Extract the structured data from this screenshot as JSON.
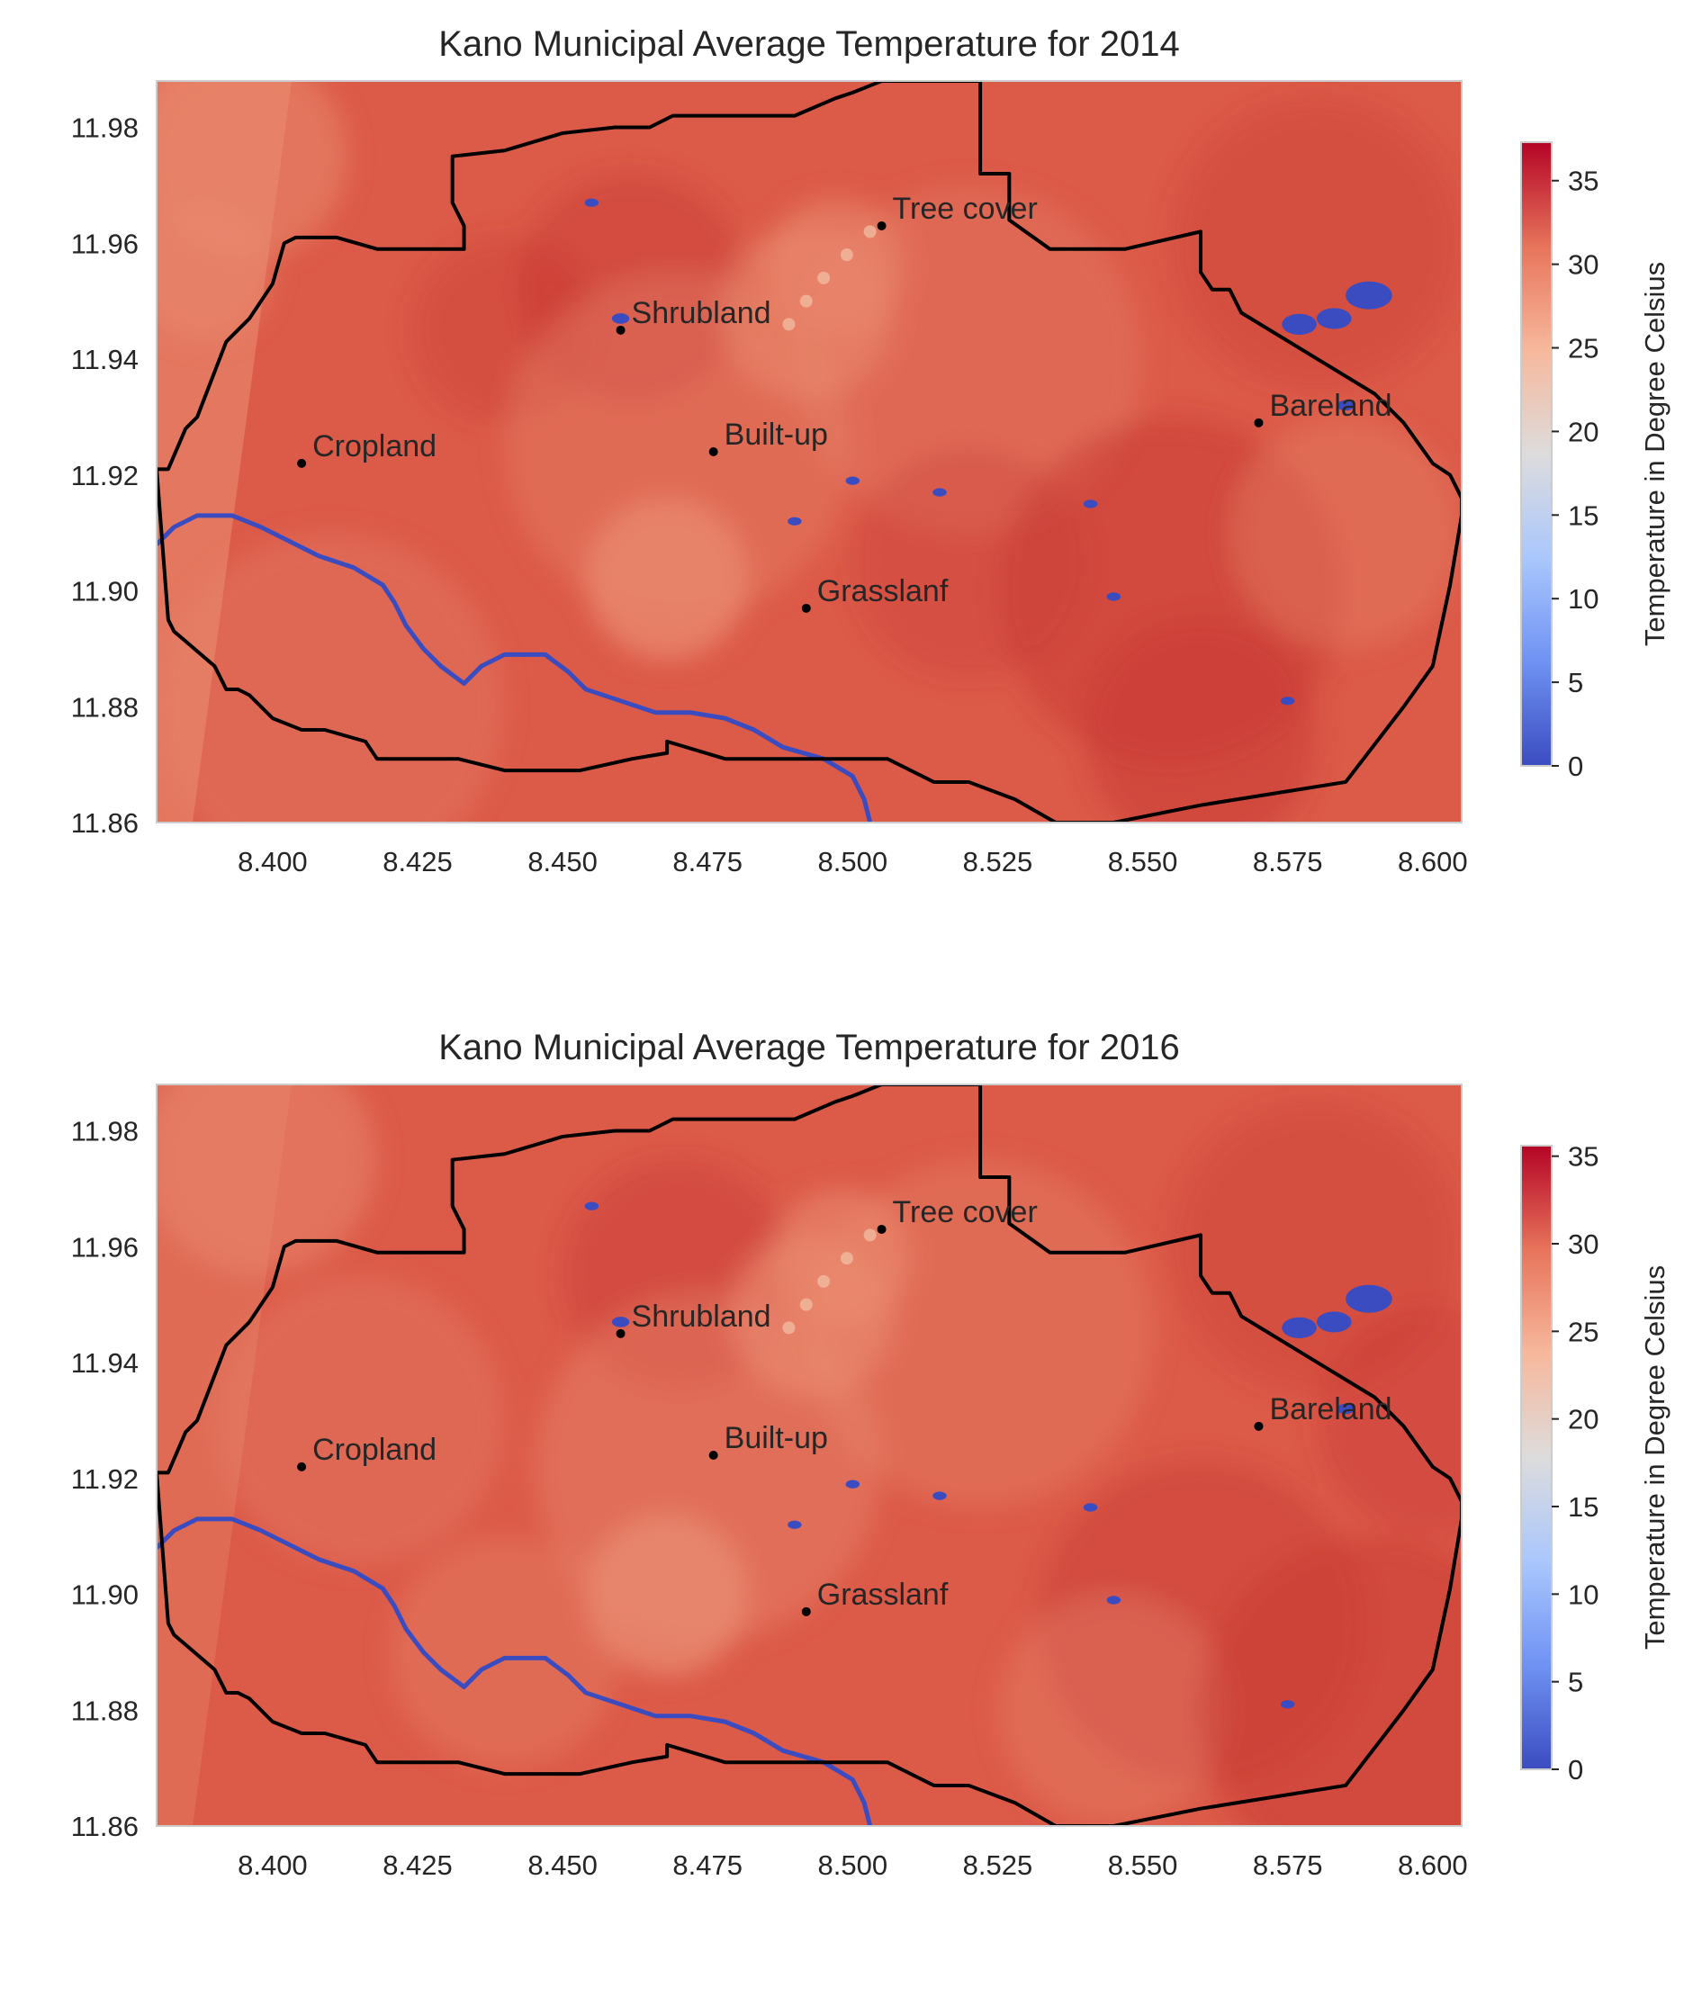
{
  "figure": {
    "colormap": [
      "#3b4cc0",
      "#6f92f3",
      "#aac7fd",
      "#dddcdc",
      "#f7b89c",
      "#e7745b",
      "#b40426"
    ],
    "boundary_color": "#000000",
    "river_color": "#3b4cc0",
    "map_fill": "#dc5a48",
    "map_fill_light": "#e98b70",
    "map_fill_dark": "#c83a34"
  },
  "chart_data": [
    {
      "type": "heatmap",
      "title": "Kano Municipal Average Temperature for 2014",
      "xlim": [
        8.38,
        8.605
      ],
      "ylim": [
        11.86,
        11.988
      ],
      "x_ticks": [
        "8.400",
        "8.425",
        "8.450",
        "8.475",
        "8.500",
        "8.525",
        "8.550",
        "8.575",
        "8.600"
      ],
      "y_ticks": [
        "11.86",
        "11.88",
        "11.90",
        "11.92",
        "11.94",
        "11.96",
        "11.98"
      ],
      "colorbar": {
        "label": "Temperature in Degree Celsius",
        "range": [
          0,
          37.3
        ],
        "ticks": [
          "0",
          "5",
          "10",
          "15",
          "20",
          "25",
          "30",
          "35"
        ]
      },
      "points": [
        {
          "label": "Tree cover",
          "x": 8.505,
          "y": 11.963
        },
        {
          "label": "Shrubland",
          "x": 8.46,
          "y": 11.945
        },
        {
          "label": "Bareland",
          "x": 8.57,
          "y": 11.929
        },
        {
          "label": "Cropland",
          "x": 8.405,
          "y": 11.922
        },
        {
          "label": "Built-up",
          "x": 8.476,
          "y": 11.924
        },
        {
          "label": "Grasslanf",
          "x": 8.492,
          "y": 11.897
        }
      ]
    },
    {
      "type": "heatmap",
      "title": "Kano Municipal Average Temperature for 2016",
      "xlim": [
        8.38,
        8.605
      ],
      "ylim": [
        11.86,
        11.988
      ],
      "x_ticks": [
        "8.400",
        "8.425",
        "8.450",
        "8.475",
        "8.500",
        "8.525",
        "8.550",
        "8.575",
        "8.600"
      ],
      "y_ticks": [
        "11.86",
        "11.88",
        "11.90",
        "11.92",
        "11.94",
        "11.96",
        "11.98"
      ],
      "colorbar": {
        "label": "Temperature in Degree Celsius",
        "range": [
          0,
          35.6
        ],
        "ticks": [
          "0",
          "5",
          "10",
          "15",
          "20",
          "25",
          "30",
          "35"
        ]
      },
      "points": [
        {
          "label": "Tree cover",
          "x": 8.505,
          "y": 11.963
        },
        {
          "label": "Shrubland",
          "x": 8.46,
          "y": 11.945
        },
        {
          "label": "Bareland",
          "x": 8.57,
          "y": 11.929
        },
        {
          "label": "Cropland",
          "x": 8.405,
          "y": 11.922
        },
        {
          "label": "Built-up",
          "x": 8.476,
          "y": 11.924
        },
        {
          "label": "Grasslanf",
          "x": 8.492,
          "y": 11.897
        }
      ]
    }
  ]
}
